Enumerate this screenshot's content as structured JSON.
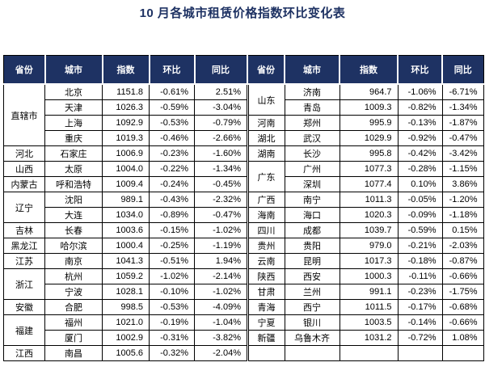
{
  "colors": {
    "title_text": "#1e3263",
    "header_bg": "#1e3263",
    "header_text": "#ffffff",
    "grid_border": "#000000",
    "cell_text": "#000000"
  },
  "chart_data": {
    "type": "table",
    "title": "10 月各城市租赁价格指数环比变化表",
    "columns": [
      "省份",
      "城市",
      "指数",
      "环比",
      "同比"
    ],
    "left": [
      {
        "province": "直辖市",
        "cities": [
          [
            "北京",
            "1151.8",
            "-0.61%",
            "2.51%"
          ],
          [
            "天津",
            "1026.3",
            "-0.59%",
            "-3.04%"
          ],
          [
            "上海",
            "1092.9",
            "-0.53%",
            "-0.79%"
          ],
          [
            "重庆",
            "1019.3",
            "-0.46%",
            "-2.66%"
          ]
        ]
      },
      {
        "province": "河北",
        "cities": [
          [
            "石家庄",
            "1006.9",
            "-0.23%",
            "-1.60%"
          ]
        ]
      },
      {
        "province": "山西",
        "cities": [
          [
            "太原",
            "1004.0",
            "-0.22%",
            "-1.34%"
          ]
        ]
      },
      {
        "province": "内蒙古",
        "cities": [
          [
            "呼和浩特",
            "1009.4",
            "-0.24%",
            "-0.45%"
          ]
        ]
      },
      {
        "province": "辽宁",
        "cities": [
          [
            "沈阳",
            "989.1",
            "-0.43%",
            "-2.32%"
          ],
          [
            "大连",
            "1034.0",
            "-0.89%",
            "-0.47%"
          ]
        ]
      },
      {
        "province": "吉林",
        "cities": [
          [
            "长春",
            "1003.6",
            "-0.15%",
            "-1.02%"
          ]
        ]
      },
      {
        "province": "黑龙江",
        "cities": [
          [
            "哈尔滨",
            "1000.4",
            "-0.25%",
            "-1.19%"
          ]
        ]
      },
      {
        "province": "江苏",
        "cities": [
          [
            "南京",
            "1041.3",
            "-0.51%",
            "1.94%"
          ]
        ]
      },
      {
        "province": "浙江",
        "cities": [
          [
            "杭州",
            "1059.2",
            "-1.02%",
            "-2.14%"
          ],
          [
            "宁波",
            "1028.1",
            "-0.10%",
            "-1.02%"
          ]
        ]
      },
      {
        "province": "安徽",
        "cities": [
          [
            "合肥",
            "998.5",
            "-0.53%",
            "-4.09%"
          ]
        ]
      },
      {
        "province": "福建",
        "cities": [
          [
            "福州",
            "1021.0",
            "-0.19%",
            "-1.04%"
          ],
          [
            "厦门",
            "1002.9",
            "-0.31%",
            "-3.82%"
          ]
        ]
      },
      {
        "province": "江西",
        "cities": [
          [
            "南昌",
            "1005.6",
            "-0.32%",
            "-2.04%"
          ]
        ]
      }
    ],
    "right": [
      {
        "province": "山东",
        "cities": [
          [
            "济南",
            "964.7",
            "-1.06%",
            "-6.71%"
          ],
          [
            "青岛",
            "1009.3",
            "-0.82%",
            "-1.34%"
          ]
        ]
      },
      {
        "province": "河南",
        "cities": [
          [
            "郑州",
            "995.9",
            "-0.13%",
            "-1.87%"
          ]
        ]
      },
      {
        "province": "湖北",
        "cities": [
          [
            "武汉",
            "1029.9",
            "-0.92%",
            "-0.47%"
          ]
        ]
      },
      {
        "province": "湖南",
        "cities": [
          [
            "长沙",
            "995.8",
            "-0.42%",
            "-3.42%"
          ]
        ]
      },
      {
        "province": "广东",
        "cities": [
          [
            "广州",
            "1077.3",
            "-0.28%",
            "-1.15%"
          ],
          [
            "深圳",
            "1077.4",
            "0.10%",
            "3.86%"
          ]
        ]
      },
      {
        "province": "广西",
        "cities": [
          [
            "南宁",
            "1011.3",
            "-0.05%",
            "-1.20%"
          ]
        ]
      },
      {
        "province": "海南",
        "cities": [
          [
            "海口",
            "1020.3",
            "-0.09%",
            "-1.18%"
          ]
        ]
      },
      {
        "province": "四川",
        "cities": [
          [
            "成都",
            "1039.7",
            "-0.59%",
            "0.15%"
          ]
        ]
      },
      {
        "province": "贵州",
        "cities": [
          [
            "贵阳",
            "979.0",
            "-0.21%",
            "-2.03%"
          ]
        ]
      },
      {
        "province": "云南",
        "cities": [
          [
            "昆明",
            "1017.3",
            "-0.18%",
            "-0.87%"
          ]
        ]
      },
      {
        "province": "陕西",
        "cities": [
          [
            "西安",
            "1000.3",
            "-0.11%",
            "-0.66%"
          ]
        ]
      },
      {
        "province": "甘肃",
        "cities": [
          [
            "兰州",
            "991.1",
            "-0.23%",
            "-1.75%"
          ]
        ]
      },
      {
        "province": "青海",
        "cities": [
          [
            "西宁",
            "1011.5",
            "-0.17%",
            "-0.68%"
          ]
        ]
      },
      {
        "province": "宁夏",
        "cities": [
          [
            "银川",
            "1003.5",
            "-0.14%",
            "-0.66%"
          ]
        ]
      },
      {
        "province": "新疆",
        "cities": [
          [
            "乌鲁木齐",
            "1031.2",
            "-0.72%",
            "1.08%"
          ]
        ]
      },
      {
        "province": "",
        "cities": [
          [
            "",
            "",
            "",
            ""
          ]
        ]
      }
    ]
  }
}
